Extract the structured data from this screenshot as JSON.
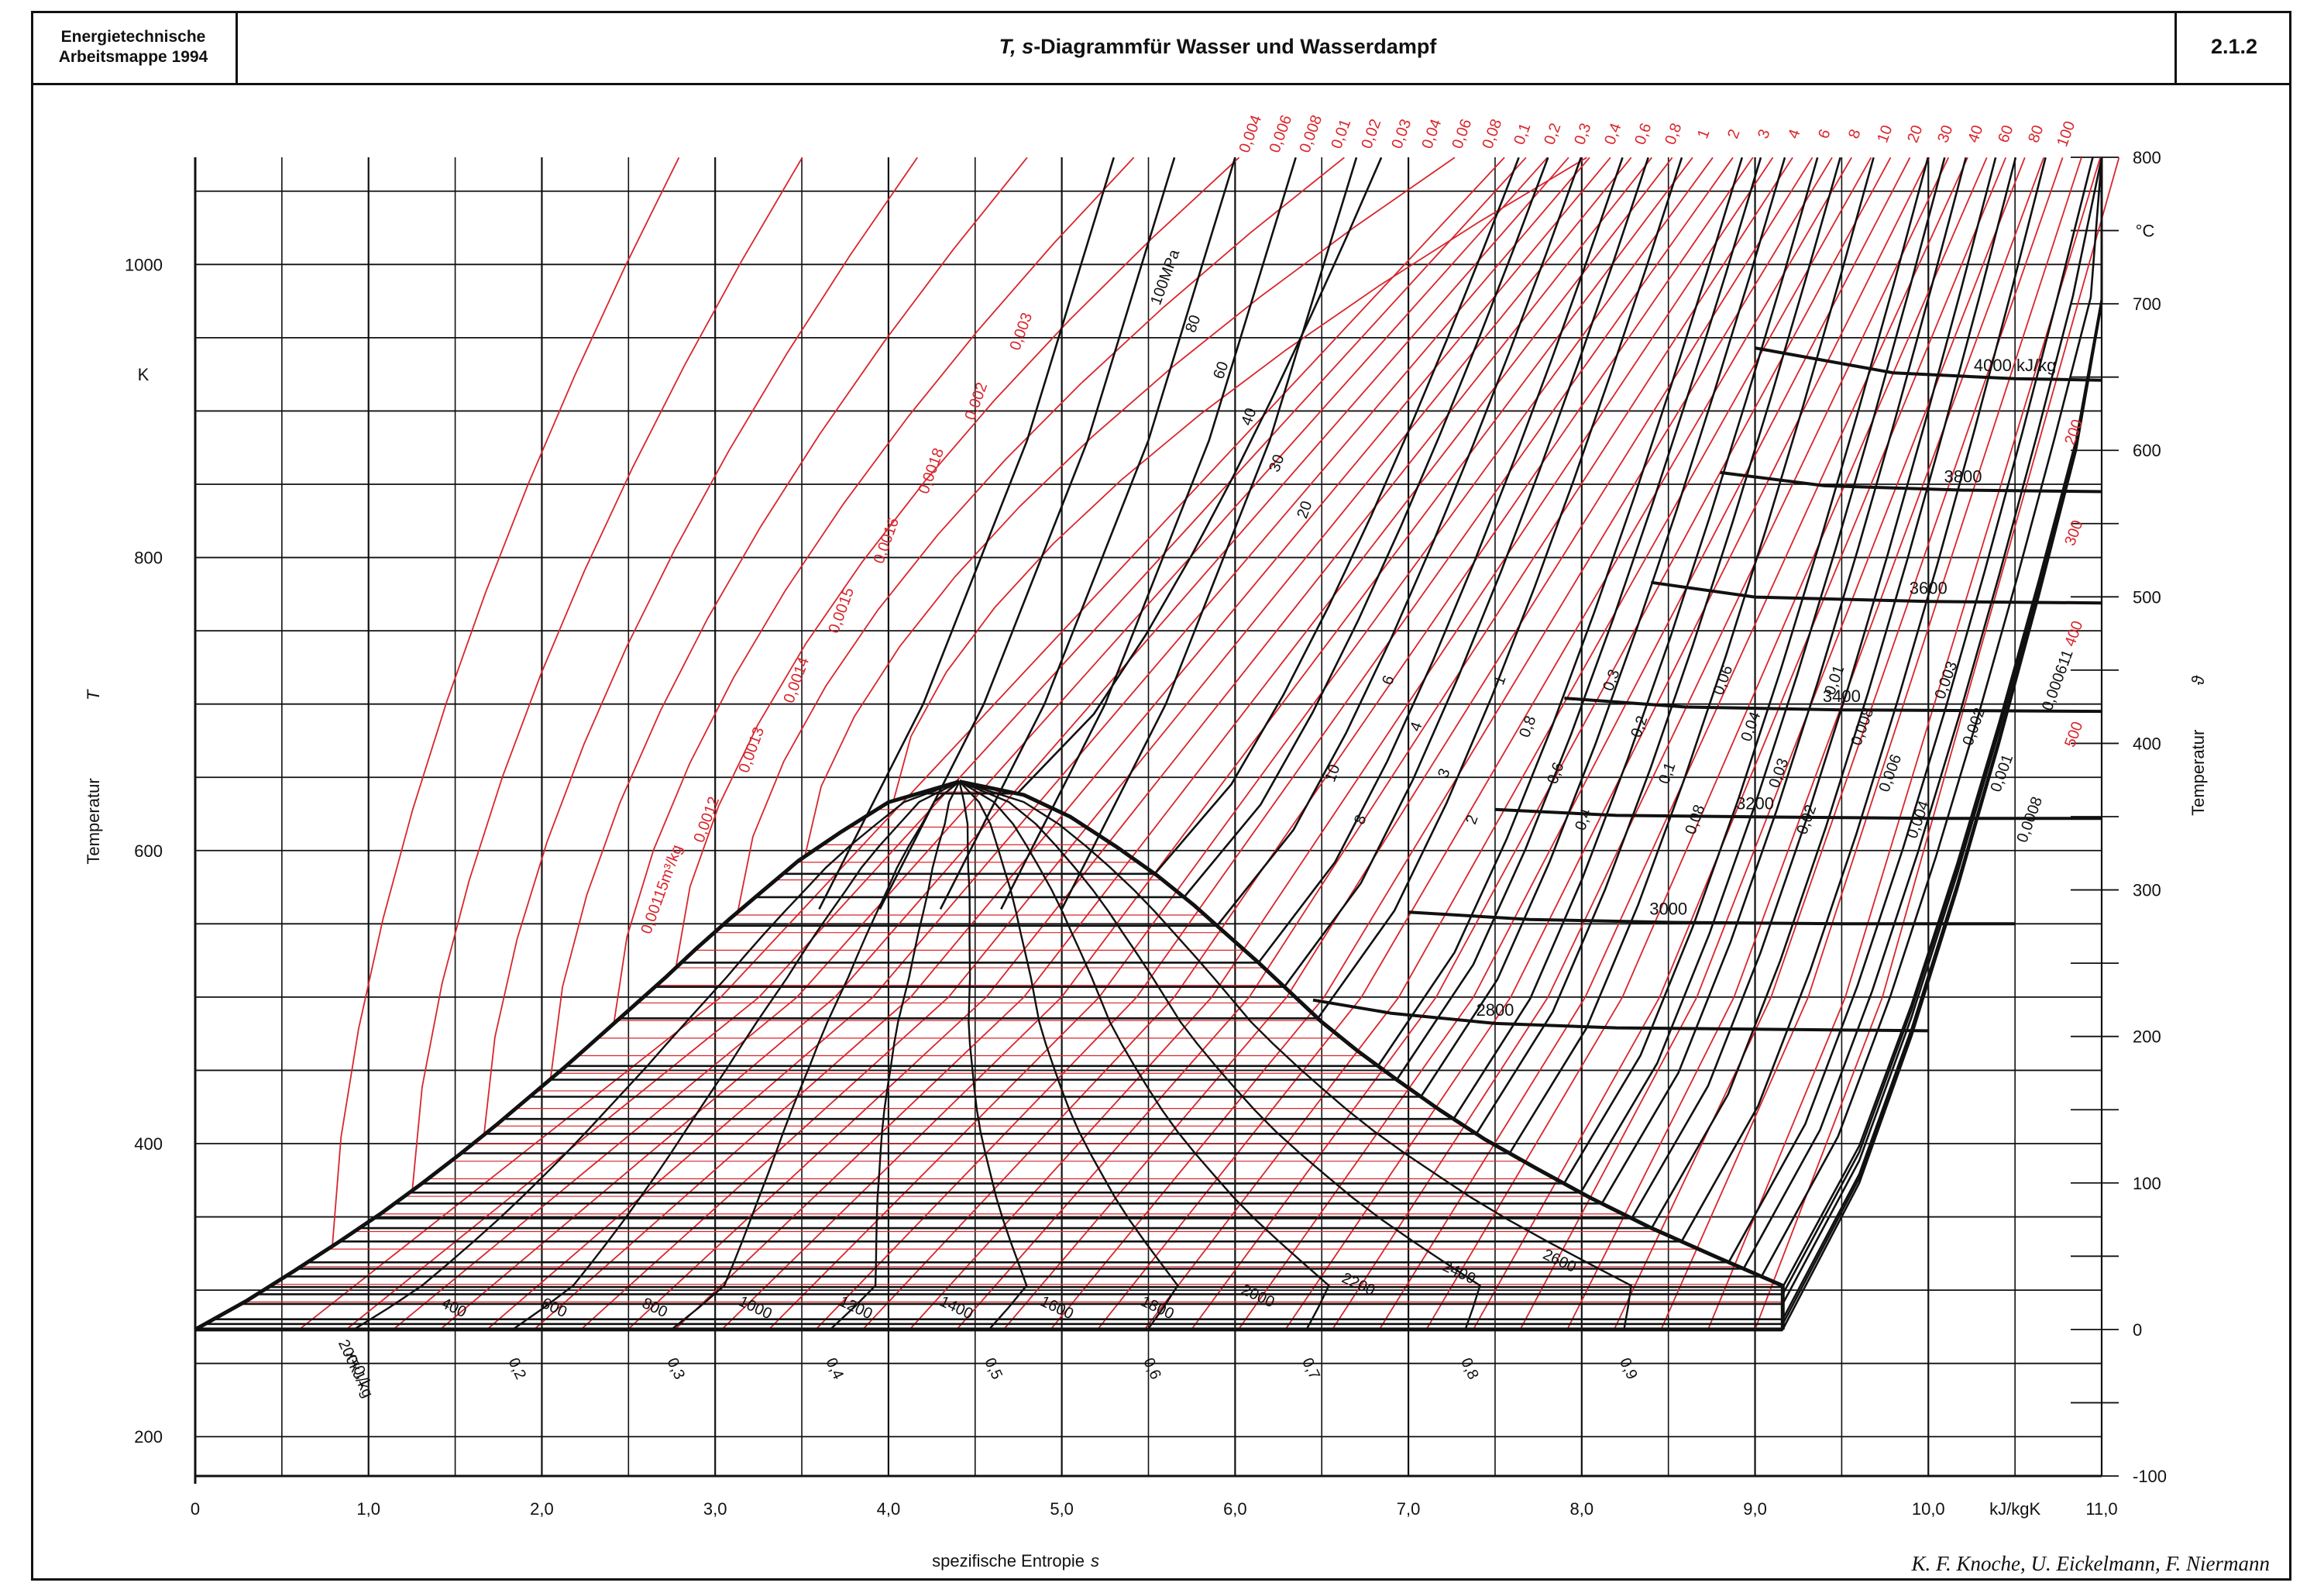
{
  "header": {
    "left_line1": "Energietechnische",
    "left_line2": "Arbeitsmappe 1994",
    "title_italic": "T, s",
    "title_rest": "-Diagrammfür Wasser und Wasserdampf",
    "sheet_number": "2.1.2"
  },
  "footer": {
    "authors": "K. F. Knoche, U. Eickelmann, F. Niermann"
  },
  "chart_data": {
    "type": "line",
    "xlabel": "spezifische Entropie",
    "xlabel_symbol": "s",
    "x_unit": "kJ/kgK",
    "xlim": [
      0,
      11.0
    ],
    "x_ticks": [
      0,
      1.0,
      2.0,
      3.0,
      4.0,
      5.0,
      6.0,
      7.0,
      8.0,
      9.0,
      10.0,
      11.0
    ],
    "x_tick_labels": [
      "0",
      "1,0",
      "2,0",
      "3,0",
      "4,0",
      "5,0",
      "6,0",
      "7,0",
      "8,0",
      "9,0",
      "10,0",
      "11,0"
    ],
    "ylabel_left": "Temperatur",
    "ylabel_left_symbol": "T",
    "y_unit_left": "K",
    "ylim_K": [
      173.15,
      1073.15
    ],
    "y_ticks_left": [
      200,
      400,
      600,
      800,
      1000
    ],
    "ylabel_right": "Temperatur",
    "ylabel_right_symbol": "ϑ",
    "y_unit_right": "°C",
    "y_ticks_right": [
      -100,
      0,
      100,
      200,
      300,
      400,
      500,
      600,
      700,
      800
    ],
    "grid": true,
    "saturation_dome": {
      "liquid": [
        [
          0,
          273.15
        ],
        [
          0.3,
          293
        ],
        [
          0.57,
          313
        ],
        [
          0.83,
          333
        ],
        [
          1.08,
          353
        ],
        [
          1.31,
          373
        ],
        [
          1.53,
          393
        ],
        [
          1.74,
          413
        ],
        [
          1.94,
          433
        ],
        [
          2.14,
          453
        ],
        [
          2.33,
          473
        ],
        [
          2.52,
          493
        ],
        [
          2.71,
          513
        ],
        [
          2.89,
          533
        ],
        [
          3.08,
          553
        ],
        [
          3.28,
          573
        ],
        [
          3.48,
          593
        ],
        [
          3.73,
          613
        ],
        [
          4.0,
          633
        ],
        [
          4.41,
          647.1
        ]
      ],
      "vapor": [
        [
          4.41,
          647.1
        ],
        [
          4.78,
          638
        ],
        [
          5.05,
          623
        ],
        [
          5.31,
          603
        ],
        [
          5.55,
          583
        ],
        [
          5.76,
          563
        ],
        [
          5.95,
          543
        ],
        [
          6.14,
          523
        ],
        [
          6.32,
          503
        ],
        [
          6.5,
          483
        ],
        [
          6.71,
          463
        ],
        [
          6.94,
          443
        ],
        [
          7.18,
          423
        ],
        [
          7.44,
          403
        ],
        [
          7.74,
          383
        ],
        [
          8.05,
          363
        ],
        [
          8.39,
          343
        ],
        [
          8.77,
          323
        ],
        [
          9.16,
          303
        ],
        [
          9.16,
          273.15
        ]
      ]
    },
    "quality_lines": {
      "labels": [
        "x=0,1",
        "0,2",
        "0,3",
        "0,4",
        "0,5",
        "0,6",
        "0,7",
        "0,8",
        "0,9"
      ],
      "values": [
        0.1,
        0.2,
        0.3,
        0.4,
        0.5,
        0.6,
        0.7,
        0.8,
        0.9
      ]
    },
    "enthalpy_labels_two_phase": [
      "200kJ/kg",
      "400",
      "600",
      "800",
      "1000",
      "1200",
      "1400",
      "1600",
      "1800",
      "2000",
      "2200",
      "2400",
      "2600"
    ],
    "enthalpy_lines": [
      {
        "label": "2800",
        "points": [
          [
            6.45,
            498
          ],
          [
            6.9,
            489
          ],
          [
            7.5,
            482
          ],
          [
            8.2,
            479
          ],
          [
            10.0,
            477
          ]
        ]
      },
      {
        "label": "3000",
        "points": [
          [
            7.0,
            558
          ],
          [
            7.7,
            553
          ],
          [
            8.5,
            551
          ],
          [
            9.5,
            550
          ],
          [
            10.5,
            550
          ]
        ]
      },
      {
        "label": "3200",
        "points": [
          [
            7.5,
            628
          ],
          [
            8.2,
            624
          ],
          [
            9.0,
            623
          ],
          [
            10.0,
            622
          ],
          [
            11.0,
            622
          ]
        ]
      },
      {
        "label": "3400",
        "points": [
          [
            7.9,
            704
          ],
          [
            8.6,
            698
          ],
          [
            9.5,
            696
          ],
          [
            11.0,
            695
          ]
        ]
      },
      {
        "label": "3600",
        "points": [
          [
            8.4,
            783
          ],
          [
            9.0,
            773
          ],
          [
            10.0,
            770
          ],
          [
            11.0,
            769
          ]
        ]
      },
      {
        "label": "3800",
        "points": [
          [
            8.8,
            858
          ],
          [
            9.4,
            849
          ],
          [
            10.2,
            846
          ],
          [
            11.0,
            845
          ]
        ]
      },
      {
        "label": "4000 kJ/kg",
        "points": [
          [
            9.0,
            943
          ],
          [
            9.8,
            926
          ],
          [
            10.5,
            922
          ],
          [
            11.0,
            921
          ]
        ]
      }
    ],
    "pressure_lines": {
      "labels": [
        "100MPa",
        "80",
        "60",
        "40",
        "30",
        "20",
        "10",
        "8",
        "6",
        "4",
        "3",
        "2",
        "1",
        "0,8",
        "0,6",
        "0,4",
        "0,3",
        "0,2",
        "0,1",
        "0,08",
        "0,06",
        "0,04",
        "0,03",
        "0,02",
        "0,01",
        "0,008",
        "0,006",
        "0,004",
        "0,003",
        "0,002",
        "0,001",
        "0,0008",
        "0,000611"
      ],
      "saturation_temperature_K": [
        null,
        null,
        null,
        null,
        null,
        638.9,
        584.1,
        568.2,
        548.7,
        523.5,
        507.0,
        485.5,
        453.0,
        443.6,
        432.0,
        416.8,
        406.7,
        393.4,
        372.8,
        366.6,
        359.1,
        349.0,
        342.3,
        333.2,
        319.0,
        314.6,
        309.3,
        302.1,
        297.2,
        290.6,
        280.1,
        276.9,
        273.16
      ]
    },
    "volume_lines": {
      "labels": [
        "0,00115m³/kg",
        "0,0012",
        "0,0013",
        "0,0014",
        "0,0015",
        "0,0016",
        "0,0018",
        "0,002",
        "0,003",
        "0,004",
        "0,006",
        "0,008",
        "0,01",
        "0,02",
        "0,03",
        "0,04",
        "0,06",
        "0,08",
        "0,1",
        "0,2",
        "0,3",
        "0,4",
        "0,6",
        "0,8",
        "1",
        "2",
        "3",
        "4",
        "6",
        "8",
        "10",
        "20",
        "30",
        "40",
        "60",
        "80",
        "100",
        "200",
        "300",
        "400",
        "500"
      ]
    }
  }
}
